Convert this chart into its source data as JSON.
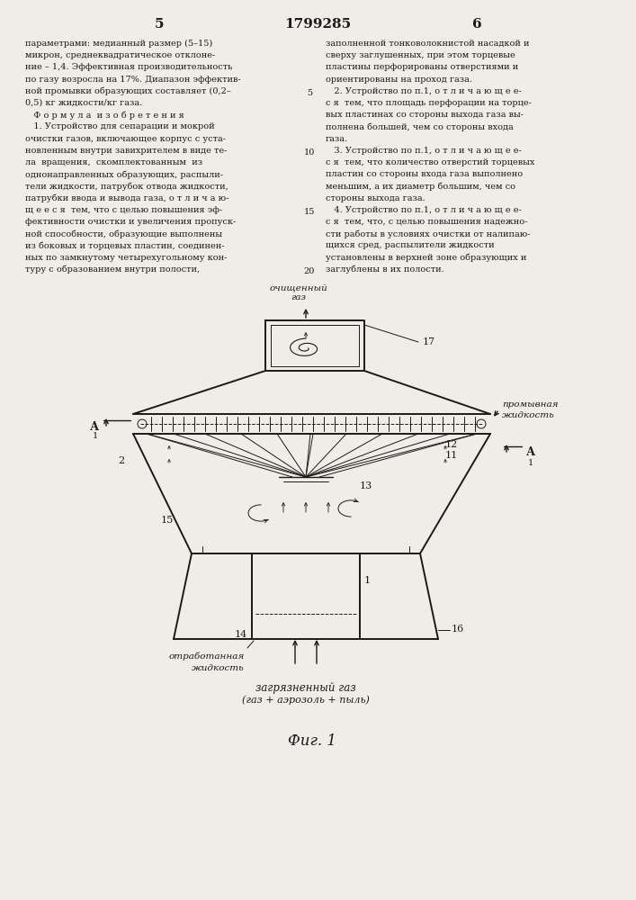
{
  "page_number_left": "5",
  "page_number_center": "1799285",
  "page_number_right": "6",
  "bg_color": "#f0ede8",
  "text_color": "#1a1a1a",
  "left_column_text": [
    "параметрами: медианный размер (5–15)",
    "микрон, среднеквадратическое отклоне-",
    "ние – 1,4. Эффективная производительность",
    "по газу возросла на 17%. Диапазон эффектив-",
    "ной промывки образующих составляет (0,2–",
    "0,5) кг жидкости/кг газа.",
    "   Ф о р м у л а  и з о б р е т е н и я",
    "   1. Устройство для сепарации и мокрой",
    "очистки газов, включающее корпус с уста-",
    "новленным внутри завихрителем в виде те-",
    "ла  вращения,  скомплектованным  из",
    "однонаправленных образующих, распыли-",
    "тели жидкости, патрубок отвода жидкости,",
    "патрубки ввода и вывода газа, о т л и ч а ю-",
    "щ е е с я  тем, что с целью повышения эф-",
    "фективности очистки и увеличения пропуск-",
    "ной способности, образующие выполнены",
    "из боковых и торцевых пластин, соединен-",
    "ных по замкнутому четырехугольному кон-",
    "туру с образованием внутри полости,"
  ],
  "right_column_text": [
    "заполненной тонковолокнистой насадкой и",
    "сверху заглушенных, при этом торцевые",
    "пластины перфорированы отверстиями и",
    "ориентированы на проход газа.",
    "   2. Устройство по п.1, о т л и ч а ю щ е е-",
    "с я  тем, что площадь перфорации на торце-",
    "вых пластинах со стороны выхода газа вы-",
    "полнена большей, чем со стороны входа",
    "газа.",
    "   3. Устройство по п.1, о т л и ч а ю щ е е-",
    "с я  тем, что количество отверстий торцевых",
    "пластин со стороны входа газа выполнено",
    "меньшим, а их диаметр большим, чем со",
    "стороны выхода газа.",
    "   4. Устройство по п.1, о т л и ч а ю щ е е-",
    "с я  тем, что, с целью повышения надежно-",
    "сти работы в условиях очистки от налипаю-",
    "щихся сред, распылители жидкости",
    "установлены в верхней зоне образующих и",
    "заглублены в их полости."
  ],
  "fig_caption": "Фиг. 1"
}
